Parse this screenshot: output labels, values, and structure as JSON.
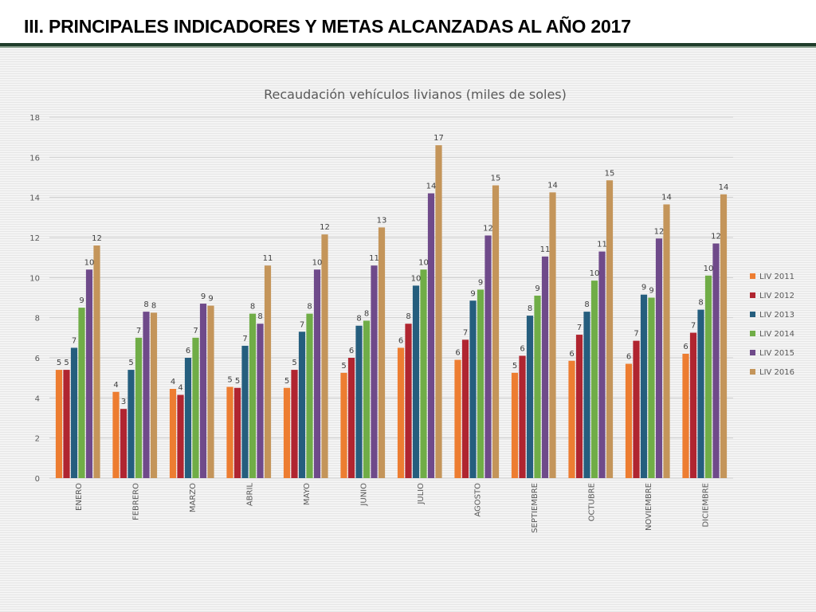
{
  "slide": {
    "title": "III. PRINCIPALES INDICADORES Y METAS ALCANZADAS AL AÑO 2017"
  },
  "chart_data": {
    "type": "bar",
    "title": "Recaudación vehículos livianos (miles de soles)",
    "xlabel": "",
    "ylabel": "",
    "ylim": [
      0,
      18
    ],
    "yticks": [
      0,
      2,
      4,
      6,
      8,
      10,
      12,
      14,
      16,
      18
    ],
    "grid": true,
    "legend_position": "right",
    "categories": [
      "ENERO",
      "FEBRERO",
      "MARZO",
      "ABRIL",
      "MAYO",
      "JUNIO",
      "JULIO",
      "AGOSTO",
      "SEPTIEMBRE",
      "OCTUBRE",
      "NOVIEMBRE",
      "DICIEMBRE"
    ],
    "series": [
      {
        "name": "LIV 2011",
        "color": "#ed7d31",
        "values": [
          5.4,
          4.3,
          4.45,
          4.55,
          4.5,
          5.25,
          6.5,
          5.9,
          5.25,
          5.85,
          5.7,
          6.2
        ],
        "labels": [
          "5",
          "4",
          "4",
          "5",
          "5",
          "5",
          "6",
          "6",
          "5",
          "6",
          "6",
          "6"
        ]
      },
      {
        "name": "LIV 2012",
        "color": "#b02530",
        "values": [
          5.4,
          3.45,
          4.15,
          4.5,
          5.4,
          6.0,
          7.7,
          6.9,
          6.1,
          7.15,
          6.85,
          7.25
        ],
        "labels": [
          "5",
          "3",
          "4",
          "5",
          "5",
          "6",
          "8",
          "7",
          "6",
          "7",
          "7",
          "7"
        ]
      },
      {
        "name": "LIV 2013",
        "color": "#255e7e",
        "values": [
          6.5,
          5.4,
          6.0,
          6.6,
          7.3,
          7.6,
          9.6,
          8.85,
          8.1,
          8.3,
          9.15,
          8.4
        ],
        "labels": [
          "7",
          "5",
          "6",
          "7",
          "7",
          "8",
          "10",
          "9",
          "8",
          "8",
          "9",
          "8"
        ]
      },
      {
        "name": "LIV 2014",
        "color": "#70ad47",
        "values": [
          8.5,
          7.0,
          7.0,
          8.2,
          8.2,
          7.85,
          10.4,
          9.4,
          9.1,
          9.85,
          9.0,
          10.1
        ],
        "labels": [
          "9",
          "7",
          "7",
          "8",
          "8",
          "8",
          "10",
          "9",
          "9",
          "10",
          "9",
          "10"
        ]
      },
      {
        "name": "LIV 2015",
        "color": "#6f4a8a",
        "values": [
          10.4,
          8.3,
          8.7,
          7.7,
          10.4,
          10.6,
          14.2,
          12.1,
          11.05,
          11.3,
          11.95,
          11.7
        ],
        "labels": [
          "10",
          "8",
          "9",
          "8",
          "10",
          "11",
          "14",
          "12",
          "11",
          "11",
          "12",
          "12"
        ]
      },
      {
        "name": "LIV 2016",
        "color": "#c4955a",
        "values": [
          11.6,
          8.25,
          8.6,
          10.6,
          12.15,
          12.5,
          16.6,
          14.6,
          14.25,
          14.85,
          13.65,
          14.15
        ],
        "labels": [
          "12",
          "8",
          "9",
          "11",
          "12",
          "13",
          "17",
          "15",
          "14",
          "15",
          "14",
          "14"
        ]
      }
    ]
  }
}
